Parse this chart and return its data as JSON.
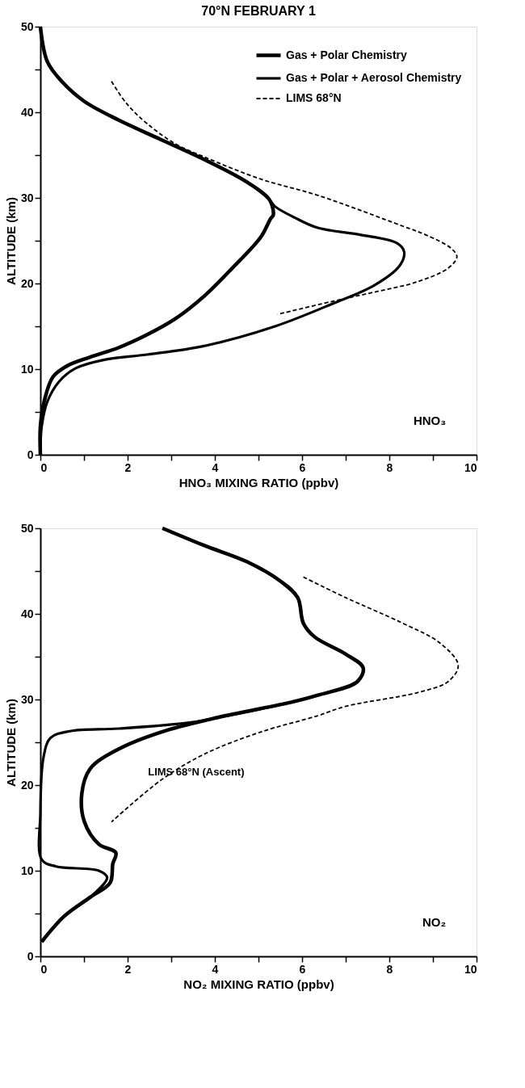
{
  "chart_data": [
    {
      "type": "line",
      "title": "70°N  FEBRUARY 1",
      "xlabel": "HNO₃ MIXING RATIO (ppbv)",
      "ylabel": "ALTITUDE (km)",
      "xlim": [
        0,
        10
      ],
      "ylim": [
        0,
        50
      ],
      "xticks": [
        0,
        {
          "value": 1,
          "label": null
        },
        2,
        {
          "value": 3,
          "label": null
        },
        4,
        {
          "value": 5,
          "label": null
        },
        6,
        {
          "value": 7,
          "label": null
        },
        8,
        {
          "value": 9,
          "label": null
        },
        10
      ],
      "yticks": [
        0,
        {
          "value": 5,
          "label": null
        },
        10,
        {
          "value": 15,
          "label": null
        },
        20,
        {
          "value": 25,
          "label": null
        },
        30,
        {
          "value": 35,
          "label": null
        },
        40,
        {
          "value": 45,
          "label": null
        },
        50
      ],
      "grid": false,
      "legend": "top right",
      "marker": "none",
      "annotations": [
        "HNO₃"
      ],
      "series": [
        {
          "name": "Gas + Polar Chemistry",
          "color": "#000000",
          "line_style": "solid",
          "x": [
            0,
            0.16,
            0.49,
            1.0,
            1.79,
            2.77,
            3.75,
            4.72,
            5.25,
            5.34,
            5.28,
            5.05,
            4.4,
            3.75,
            3.1,
            2.44,
            1.79,
            1.14,
            0.62,
            0.29,
            0.1,
            0,
            0
          ],
          "values": [
            50,
            45.9,
            43.6,
            41.3,
            39.1,
            36.8,
            34.5,
            31.9,
            29.8,
            28.0,
            27.6,
            25.4,
            21.8,
            18.5,
            15.9,
            14.0,
            12.5,
            11.4,
            10.4,
            9.1,
            6.5,
            3.3,
            0
          ]
        },
        {
          "name": "Gas + Polar + Aerosol Chemistry",
          "color": "#000000",
          "line_style": "solid",
          "x": [
            0,
            0.16,
            0.49,
            1.0,
            1.79,
            2.77,
            3.75,
            4.72,
            5.25,
            5.38,
            5.83,
            6.36,
            7.33,
            8.18,
            8.34,
            8.24,
            7.66,
            6.68,
            5.38,
            3.75,
            2.44,
            1.47,
            0.81,
            0.42,
            0.16,
            0.03,
            0
          ],
          "values": [
            50,
            45.9,
            43.6,
            41.3,
            39.1,
            36.8,
            34.5,
            31.9,
            29.8,
            29.0,
            27.7,
            26.5,
            25.7,
            24.7,
            23.7,
            22.1,
            19.8,
            17.6,
            15.0,
            12.7,
            11.7,
            11.1,
            10.1,
            8.5,
            6.2,
            3.3,
            0
          ]
        },
        {
          "name": "LIMS 68°N",
          "color": "#000000",
          "line_style": "dashed",
          "x": [
            1.63,
            1.98,
            2.44,
            3.1,
            3.75,
            5.05,
            6.36,
            8.31,
            8.83,
            9.42,
            9.55,
            9.35,
            8.64,
            7.66,
            6.68,
            5.44
          ],
          "values": [
            43.6,
            41.0,
            38.7,
            36.3,
            34.8,
            32.2,
            30.3,
            26.7,
            25.7,
            24.1,
            23.1,
            21.8,
            20.2,
            19.0,
            17.9,
            16.4
          ]
        }
      ]
    },
    {
      "type": "line",
      "xlabel": "NO₂ MIXING RATIO (ppbv)",
      "ylabel": "ALTITUDE (km)",
      "xlim": [
        0,
        10
      ],
      "ylim": [
        0,
        50
      ],
      "xticks": [
        0,
        {
          "value": 1,
          "label": null
        },
        2,
        {
          "value": 3,
          "label": null
        },
        4,
        {
          "value": 5,
          "label": null
        },
        6,
        {
          "value": 7,
          "label": null
        },
        8,
        {
          "value": 9,
          "label": null
        },
        10
      ],
      "yticks": [
        0,
        {
          "value": 5,
          "label": null
        },
        10,
        {
          "value": 15,
          "label": null
        },
        20,
        {
          "value": 25,
          "label": null
        },
        30,
        {
          "value": 35,
          "label": null
        },
        40,
        {
          "value": 45,
          "label": null
        },
        50
      ],
      "grid": false,
      "marker": "none",
      "annotations": [
        "NO₂",
        "LIMS 68°N (Ascent)"
      ],
      "series": [
        {
          "color": "#000000",
          "line_style": "solid",
          "x": [
            2.8,
            3.75,
            4.73,
            5.51,
            5.9,
            6.03,
            6.29,
            7.0,
            7.4,
            7.27,
            6.36,
            5.77,
            4.07,
            2.77,
            1.79,
            1.14,
            0.95,
            1.01,
            1.34,
            1.73,
            1.66,
            1.6,
            1.14,
            0.55,
            0.03
          ],
          "values": [
            50,
            48.0,
            46.1,
            43.8,
            41.9,
            38.9,
            37.3,
            35.3,
            33.7,
            32.1,
            30.5,
            29.7,
            27.9,
            26.2,
            24.2,
            21.9,
            19.0,
            15.7,
            13.1,
            12.1,
            10.8,
            8.6,
            6.9,
            4.7,
            1.7
          ]
        },
        {
          "color": "#000000",
          "line_style": "solid",
          "x": [
            2.8,
            3.75,
            4.73,
            5.51,
            5.9,
            6.03,
            6.29,
            7.0,
            7.4,
            7.27,
            6.36,
            5.77,
            4.07,
            3.42,
            1.79,
            0.68,
            0.23,
            0.07,
            0,
            0.03,
            0.36,
            1.34,
            1.53,
            1.14,
            0.55,
            0.03
          ],
          "values": [
            50,
            48.0,
            46.1,
            43.8,
            41.9,
            38.9,
            37.3,
            35.3,
            33.7,
            32.1,
            30.5,
            29.7,
            27.9,
            27.3,
            26.6,
            26.3,
            25.5,
            23.2,
            16.7,
            11.3,
            10.5,
            10.0,
            9.2,
            6.9,
            4.7,
            1.7
          ]
        },
        {
          "color": "#000000",
          "line_style": "dashed",
          "x": [
            6.03,
            7.0,
            8.31,
            9.16,
            9.58,
            9.35,
            8.64,
            7.0,
            6.36,
            5.05,
            3.75,
            2.77,
            1.63
          ],
          "values": [
            44.3,
            41.9,
            38.9,
            36.6,
            34.0,
            32.1,
            30.8,
            29.2,
            28.1,
            26.2,
            23.6,
            20.6,
            15.7
          ]
        }
      ]
    }
  ]
}
